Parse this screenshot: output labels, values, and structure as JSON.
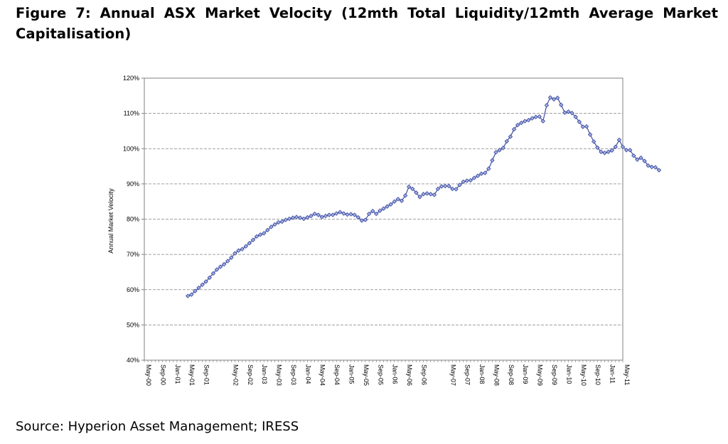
{
  "title": "Figure 7: Annual ASX Market Velocity (12mth Total Liquidity/12mth Average Market Capitalisation)",
  "source": "Source: Hyperion Asset Management; IRESS",
  "chart_data": {
    "type": "line",
    "ylabel": "Annual Market Velocity",
    "xlabel": "",
    "ylim": [
      40,
      120
    ],
    "yticks": [
      "40%",
      "50%",
      "60%",
      "70%",
      "80%",
      "90%",
      "100%",
      "110%",
      "120%"
    ],
    "xticks": [
      "May-00",
      "Sep-00",
      "Jan-01",
      "May-01",
      "Sep-01",
      "May-02",
      "Sep-02",
      "Jan-03",
      "May-03",
      "Sep-03",
      "Jan-04",
      "May-04",
      "Sep-04",
      "Jan-05",
      "May-05",
      "Sep-05",
      "Jan-06",
      "May-06",
      "Sep-06",
      "May-07",
      "Sep-07",
      "Jan-08",
      "May-08",
      "Sep-08",
      "Jan-09",
      "May-09",
      "Sep-09",
      "Jan-10",
      "May-10",
      "Sep-10",
      "Jan-11",
      "May-11"
    ],
    "grid": true,
    "line_color": "#3f4fa0",
    "marker_fill": "#aab4e8",
    "series": [
      {
        "start": "May-01",
        "frequency": "monthly",
        "values": [
          58.2,
          58.6,
          59.6,
          60.5,
          61.4,
          62.3,
          63.4,
          64.6,
          65.7,
          66.5,
          67.2,
          68.1,
          69.1,
          70.3,
          71.1,
          71.5,
          72.3,
          73.2,
          74.1,
          75.1,
          75.6,
          76.0,
          76.9,
          77.8,
          78.5,
          79.1,
          79.3,
          79.8,
          80.1,
          80.4,
          80.6,
          80.4,
          80.1,
          80.5,
          80.9,
          81.5,
          81.2,
          80.6,
          80.9,
          81.2,
          81.2,
          81.6,
          82.0,
          81.6,
          81.3,
          81.4,
          81.2,
          80.5,
          79.6,
          79.8,
          81.5,
          82.3,
          81.5,
          82.4,
          83.0,
          83.6,
          84.2,
          85.0,
          85.7,
          85.2,
          86.7,
          89.2,
          88.6,
          87.5,
          86.3,
          87.1,
          87.3,
          87.1,
          86.9,
          88.6,
          89.3,
          89.4,
          89.4,
          88.6,
          88.5,
          89.7,
          90.6,
          90.9,
          91.0,
          91.7,
          92.3,
          92.9,
          93.1,
          94.3,
          96.7,
          99.0,
          99.6,
          100.2,
          102.1,
          103.4,
          105.5,
          106.7,
          107.3,
          107.8,
          108.1,
          108.6,
          109.0,
          109.1,
          107.8,
          112.3,
          114.5,
          114.0,
          114.4,
          112.4,
          110.2,
          110.5,
          110.1,
          109.0,
          107.6,
          106.2,
          106.3,
          104.0,
          102.0,
          100.3,
          99.1,
          98.8,
          99.1,
          99.5,
          100.5,
          102.5,
          100.5,
          99.6,
          99.6,
          98.0,
          96.9,
          97.4,
          96.5,
          95.2,
          94.8,
          94.7,
          93.9
        ]
      }
    ]
  }
}
